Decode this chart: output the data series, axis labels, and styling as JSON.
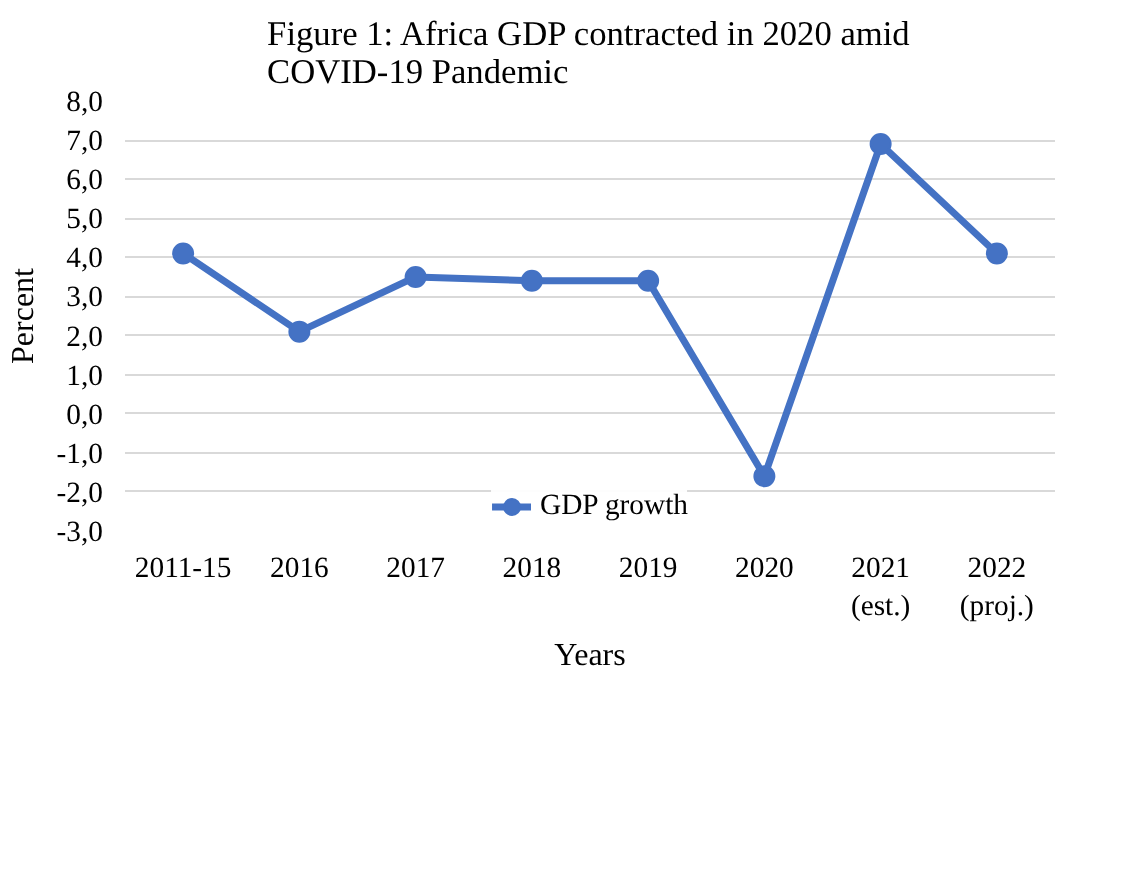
{
  "chart_data": {
    "type": "line",
    "title": "Figure 1: Africa GDP contracted in 2020 amid\nCOVID-19 Pandemic",
    "xlabel": "Years",
    "ylabel": "Percent",
    "categories": [
      "2011-15",
      "2016",
      "2017",
      "2018",
      "2019",
      "2020",
      "2021\n(est.)",
      "2022\n(proj.)"
    ],
    "series": [
      {
        "name": "GDP growth",
        "color": "#4472c4",
        "values": [
          4.1,
          2.1,
          3.5,
          3.4,
          3.4,
          -1.6,
          6.9,
          4.1
        ]
      }
    ],
    "ylim": [
      -3,
      8
    ],
    "yticks": [
      {
        "value": -3,
        "label": "-3,0"
      },
      {
        "value": -2,
        "label": "-2,0"
      },
      {
        "value": -1,
        "label": "-1,0"
      },
      {
        "value": 0,
        "label": "0,0"
      },
      {
        "value": 1,
        "label": "1,0"
      },
      {
        "value": 2,
        "label": "2,0"
      },
      {
        "value": 3,
        "label": "3,0"
      },
      {
        "value": 4,
        "label": "4,0"
      },
      {
        "value": 5,
        "label": "5,0"
      },
      {
        "value": 6,
        "label": "6,0"
      },
      {
        "value": 7,
        "label": "7,0"
      },
      {
        "value": 8,
        "label": "8,0"
      }
    ],
    "grid": "y",
    "legend": "bottom",
    "marker": "circle",
    "line_style": "solid"
  }
}
